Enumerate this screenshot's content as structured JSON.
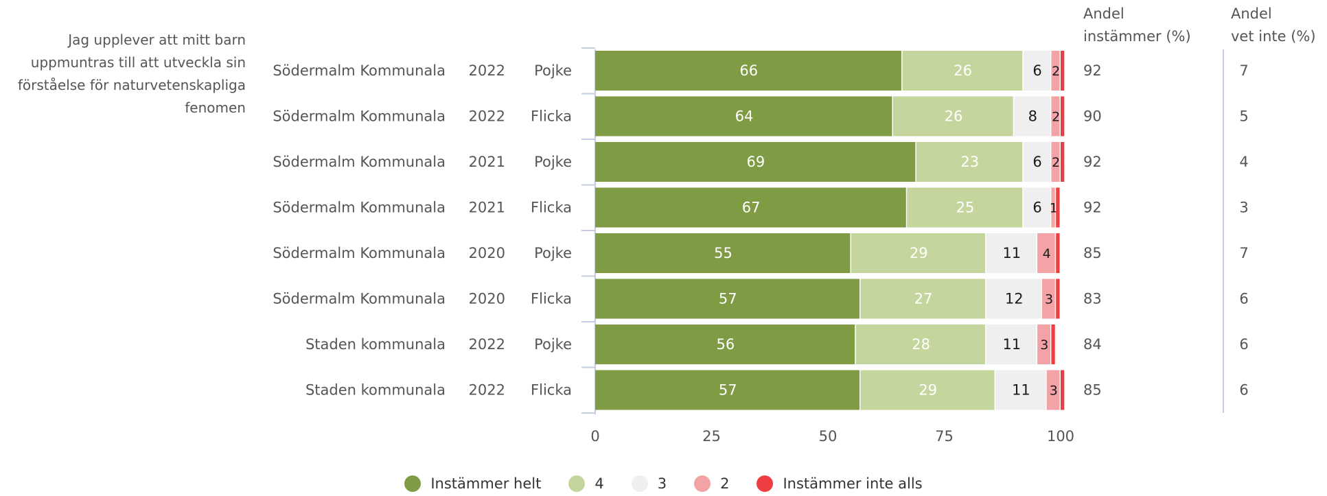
{
  "question": "Jag upplever att mitt barn uppmuntras till att utveckla sin förståelse för naturvetenskapliga fenomen",
  "question_lines": [
    "Jag upplever att mitt barn",
    "uppmuntras till att utveckla sin",
    "förståelse för naturvetenskapliga",
    "fenomen"
  ],
  "col_headers": {
    "agree": [
      "Andel",
      "instämmer (%)"
    ],
    "dont_know": [
      "Andel",
      "vet inte (%)"
    ]
  },
  "colors": {
    "Instämmer helt": "#7f9c44",
    "4": "#c4d69d",
    "3": "#efefef",
    "2": "#f3a2a6",
    "Instämmer inte alls": "#ef3e42"
  },
  "chart_data": {
    "type": "bar",
    "orientation": "horizontal",
    "stacked": true,
    "xlim": [
      0,
      100
    ],
    "x_ticks": [
      0,
      25,
      50,
      75,
      100
    ],
    "rows": [
      {
        "group": "Södermalm Kommunala",
        "year": "2022",
        "gender": "Pojke"
      },
      {
        "group": "Södermalm Kommunala",
        "year": "2022",
        "gender": "Flicka"
      },
      {
        "group": "Södermalm Kommunala",
        "year": "2021",
        "gender": "Pojke"
      },
      {
        "group": "Södermalm Kommunala",
        "year": "2021",
        "gender": "Flicka"
      },
      {
        "group": "Södermalm Kommunala",
        "year": "2020",
        "gender": "Pojke"
      },
      {
        "group": "Södermalm Kommunala",
        "year": "2020",
        "gender": "Flicka"
      },
      {
        "group": "Staden kommunala",
        "year": "2022",
        "gender": "Pojke"
      },
      {
        "group": "Staden kommunala",
        "year": "2022",
        "gender": "Flicka"
      }
    ],
    "series": [
      {
        "name": "Instämmer helt",
        "values": [
          66,
          64,
          69,
          67,
          55,
          57,
          56,
          57
        ]
      },
      {
        "name": "4",
        "values": [
          26,
          26,
          23,
          25,
          29,
          27,
          28,
          29
        ]
      },
      {
        "name": "3",
        "values": [
          6,
          8,
          6,
          6,
          11,
          12,
          11,
          11
        ]
      },
      {
        "name": "2",
        "values": [
          2,
          2,
          2,
          1,
          4,
          3,
          3,
          3
        ]
      },
      {
        "name": "Instämmer inte alls",
        "values": [
          1,
          1,
          1,
          1,
          1,
          1,
          1,
          1
        ]
      }
    ],
    "andel_instammer": [
      92,
      90,
      92,
      92,
      85,
      83,
      84,
      85
    ],
    "andel_vet_inte": [
      7,
      5,
      4,
      3,
      7,
      6,
      6,
      6
    ],
    "legend": [
      "Instämmer helt",
      "4",
      "3",
      "2",
      "Instämmer inte alls"
    ],
    "legend_position": "bottom",
    "grid": false
  }
}
